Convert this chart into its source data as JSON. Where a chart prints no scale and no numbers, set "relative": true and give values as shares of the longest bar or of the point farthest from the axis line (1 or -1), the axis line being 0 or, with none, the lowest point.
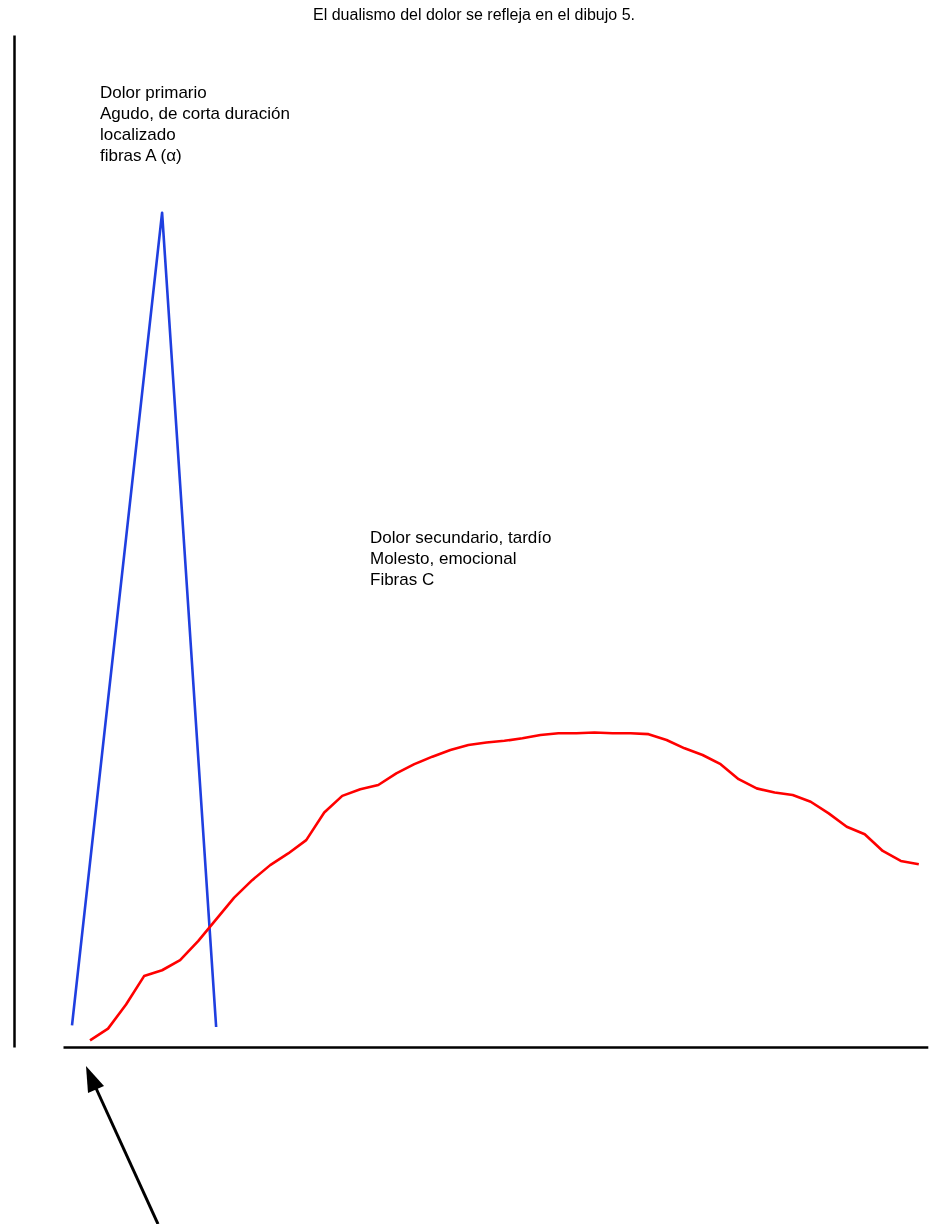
{
  "chart_data": {
    "type": "line",
    "title": "El dualismo del dolor se refleja en el dibujo 5.",
    "relative": true,
    "categories": [
      null,
      null,
      null,
      null,
      null,
      null,
      null,
      null,
      null,
      null,
      null,
      null,
      null,
      null,
      null,
      null,
      null,
      null,
      null,
      null,
      null,
      null,
      null,
      null,
      null,
      null,
      null,
      null,
      null,
      null,
      null,
      null,
      null,
      null,
      null,
      null,
      null,
      null,
      null,
      null,
      null,
      null,
      null,
      null,
      null,
      null,
      null,
      null
    ],
    "series": [
      {
        "color": "#1f3fe0",
        "values": [
          0.026,
          0.221,
          0.416,
          0.61,
          0.805,
          1,
          0.675,
          0.349,
          0.024,
          null,
          null,
          null,
          null,
          null,
          null,
          null,
          null,
          null,
          null,
          null,
          null,
          null,
          null,
          null,
          null,
          null,
          null,
          null,
          null,
          null,
          null,
          null,
          null,
          null,
          null,
          null,
          null,
          null,
          null,
          null,
          null,
          null,
          null,
          null,
          null,
          null,
          null,
          null
        ]
      },
      {
        "color": "#ff0000",
        "values": [
          null,
          0.008,
          0.022,
          0.051,
          0.085,
          0.092,
          0.104,
          0.127,
          0.153,
          0.179,
          0.2,
          0.218,
          0.232,
          0.248,
          0.281,
          0.301,
          0.309,
          0.314,
          0.328,
          0.339,
          0.348,
          0.356,
          0.362,
          0.365,
          0.367,
          0.37,
          0.374,
          0.376,
          0.376,
          0.377,
          0.376,
          0.376,
          0.375,
          0.368,
          0.358,
          0.35,
          0.339,
          0.321,
          0.31,
          0.305,
          0.302,
          0.294,
          0.28,
          0.264,
          0.255,
          0.235,
          0.223,
          0.219
        ]
      }
    ],
    "annotations": [
      "Dolor primario\nAgudo, de corta duración\nlocalizado\nfibras A (α)",
      "Dolor secundario, tardío\nMolesto, emocional\nFibras C"
    ]
  }
}
